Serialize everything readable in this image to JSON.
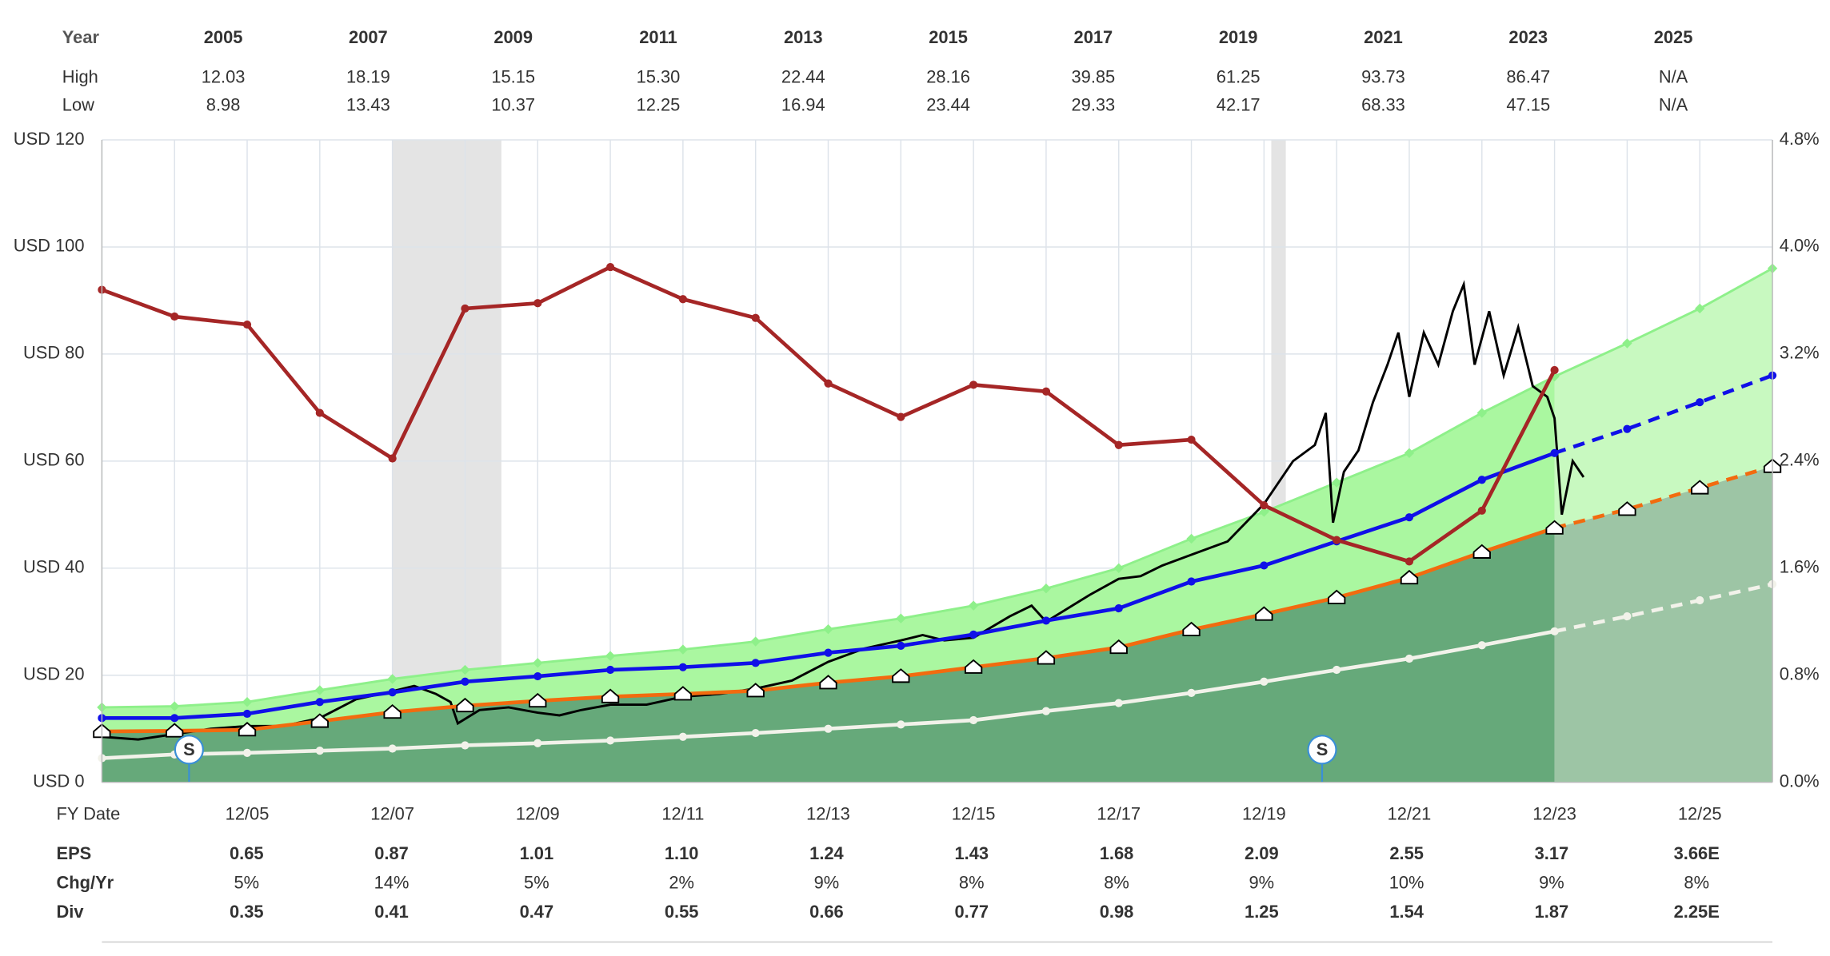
{
  "top_table": {
    "header": {
      "label": "Year",
      "values": [
        "2005",
        "2007",
        "2009",
        "2011",
        "2013",
        "2015",
        "2017",
        "2019",
        "2021",
        "2023",
        "2025"
      ]
    },
    "rows": [
      {
        "label": "High",
        "values": [
          "12.03",
          "18.19",
          "15.15",
          "15.30",
          "22.44",
          "28.16",
          "39.85",
          "61.25",
          "93.73",
          "86.47",
          "N/A"
        ]
      },
      {
        "label": "Low",
        "values": [
          "8.98",
          "13.43",
          "10.37",
          "12.25",
          "16.94",
          "23.44",
          "29.33",
          "42.17",
          "68.33",
          "47.15",
          "N/A"
        ]
      }
    ]
  },
  "bottom_table": {
    "rows": [
      {
        "label": "EPS",
        "values": [
          "0.65",
          "0.87",
          "1.01",
          "1.10",
          "1.24",
          "1.43",
          "1.68",
          "2.09",
          "2.55",
          "3.17",
          "3.66E"
        ]
      },
      {
        "label": "Chg/Yr",
        "values": [
          "5%",
          "14%",
          "5%",
          "2%",
          "9%",
          "8%",
          "8%",
          "9%",
          "10%",
          "9%",
          "8%"
        ]
      },
      {
        "label": "Div",
        "values": [
          "0.35",
          "0.41",
          "0.47",
          "0.55",
          "0.66",
          "0.77",
          "0.98",
          "1.25",
          "1.54",
          "1.87",
          "2.25E"
        ]
      }
    ]
  },
  "chart_data": {
    "type": "line",
    "x_label": "FY Date",
    "xlim": [
      2003,
      2026
    ],
    "xticks": [
      {
        "value": 2005,
        "label": "12/05"
      },
      {
        "value": 2007,
        "label": "12/07"
      },
      {
        "value": 2009,
        "label": "12/09"
      },
      {
        "value": 2011,
        "label": "12/11"
      },
      {
        "value": 2013,
        "label": "12/13"
      },
      {
        "value": 2015,
        "label": "12/15"
      },
      {
        "value": 2017,
        "label": "12/17"
      },
      {
        "value": 2019,
        "label": "12/19"
      },
      {
        "value": 2021,
        "label": "12/21"
      },
      {
        "value": 2023,
        "label": "12/23"
      },
      {
        "value": 2025,
        "label": "12/25"
      }
    ],
    "ylim": [
      0,
      120
    ],
    "yticks": [
      {
        "value": 0,
        "label": "USD 0"
      },
      {
        "value": 20,
        "label": "USD 20"
      },
      {
        "value": 40,
        "label": "USD 40"
      },
      {
        "value": 60,
        "label": "USD 60"
      },
      {
        "value": 80,
        "label": "USD 80"
      },
      {
        "value": 100,
        "label": "USD 100"
      },
      {
        "value": 120,
        "label": "USD 120"
      }
    ],
    "y2lim": [
      0,
      4.8
    ],
    "y2ticks": [
      {
        "value": 0,
        "label": "0.0%"
      },
      {
        "value": 0.8,
        "label": "0.8%"
      },
      {
        "value": 1.6,
        "label": "1.6%"
      },
      {
        "value": 2.4,
        "label": "2.4%"
      },
      {
        "value": 3.2,
        "label": "3.2%"
      },
      {
        "value": 4,
        "label": "4.0%"
      },
      {
        "value": 4.8,
        "label": "4.8%"
      }
    ],
    "grid": true,
    "estimate_from": 2023,
    "recessions": [
      [
        2007.0,
        2008.5
      ],
      [
        2019.1,
        2019.3
      ]
    ],
    "annotations": [
      {
        "x": 2004.2,
        "label": "S"
      },
      {
        "x": 2019.8,
        "label": "S"
      }
    ],
    "x": [
      2003,
      2004,
      2005,
      2006,
      2007,
      2008,
      2009,
      2010,
      2011,
      2012,
      2013,
      2014,
      2015,
      2016,
      2017,
      2018,
      2019,
      2020,
      2021,
      2022,
      2023,
      2024,
      2025,
      2026
    ],
    "band": {
      "color": "#8ef08a",
      "values": [
        14,
        14.2,
        15,
        17.2,
        19.3,
        21,
        22.3,
        23.6,
        24.8,
        26.3,
        28.6,
        30.6,
        33,
        36.2,
        40,
        45.5,
        50.5,
        56,
        61.5,
        69,
        75.8,
        82,
        88.5,
        96
      ]
    },
    "series": [
      {
        "key": "earnings",
        "color": "#f26b0f",
        "values": [
          9.5,
          9.6,
          9.8,
          11.4,
          13.1,
          14.3,
          15.2,
          16,
          16.5,
          17.1,
          18.6,
          19.8,
          21.5,
          23.2,
          25.2,
          28.5,
          31.4,
          34.5,
          38.2,
          43,
          47.5,
          51,
          55,
          59
        ]
      },
      {
        "key": "dividends",
        "color": "#f2f2ea",
        "values": [
          4.5,
          5.2,
          5.5,
          5.9,
          6.3,
          6.9,
          7.3,
          7.8,
          8.5,
          9.2,
          10,
          10.8,
          11.6,
          13.3,
          14.8,
          16.7,
          18.8,
          21,
          23.1,
          25.6,
          28.2,
          31,
          34,
          37
        ]
      },
      {
        "key": "normal",
        "color": "#1010e8",
        "values": [
          12,
          12,
          12.8,
          15,
          16.8,
          18.8,
          19.8,
          21,
          21.5,
          22.3,
          24.2,
          25.5,
          27.6,
          30.2,
          32.5,
          37.5,
          40.5,
          45,
          49.5,
          56.5,
          61.5,
          66,
          71,
          76
        ]
      },
      {
        "key": "yield",
        "color": "#a52626",
        "axis": "y2",
        "values": [
          3.68,
          3.48,
          3.42,
          2.76,
          2.42,
          3.54,
          3.58,
          3.85,
          3.61,
          3.47,
          2.98,
          2.73,
          2.97,
          2.92,
          2.52,
          2.56,
          2.07,
          1.81,
          1.65,
          2.03,
          3.08,
          null,
          null,
          null
        ]
      }
    ],
    "price": {
      "color": "#000000",
      "x": [
        2003,
        2003.5,
        2004,
        2004.5,
        2005,
        2005.5,
        2006,
        2006.5,
        2007,
        2007.3,
        2007.6,
        2007.8,
        2007.9,
        2008.2,
        2008.6,
        2009,
        2009.3,
        2009.6,
        2010,
        2010.5,
        2011,
        2011.5,
        2012,
        2012.5,
        2013,
        2013.5,
        2014,
        2014.3,
        2014.6,
        2015,
        2015.5,
        2015.8,
        2016,
        2016.3,
        2016.6,
        2017,
        2017.3,
        2017.6,
        2018,
        2018.5,
        2019,
        2019.4,
        2019.7,
        2019.85,
        2019.95,
        2020.1,
        2020.3,
        2020.5,
        2020.7,
        2020.85,
        2021,
        2021.2,
        2021.4,
        2021.6,
        2021.75,
        2021.9,
        2022.1,
        2022.3,
        2022.5,
        2022.7,
        2022.9,
        2023,
        2023.1,
        2023.25,
        2023.4
      ],
      "values": [
        8.5,
        8,
        9,
        10,
        10.5,
        10.5,
        12,
        15.5,
        17,
        18,
        16.5,
        15,
        11,
        13.5,
        14,
        13,
        12.5,
        13.5,
        14.5,
        14.5,
        16,
        16.5,
        17.5,
        19,
        22.5,
        25,
        26.5,
        27.5,
        26.5,
        27,
        31,
        33,
        30,
        32.5,
        35,
        38,
        38.5,
        40.5,
        42.5,
        45,
        52,
        60,
        63,
        69,
        48.5,
        58,
        62,
        71,
        78,
        84,
        72,
        84,
        78,
        88,
        93,
        78,
        88,
        76,
        85,
        74,
        72,
        68,
        50,
        60,
        57
      ]
    }
  }
}
